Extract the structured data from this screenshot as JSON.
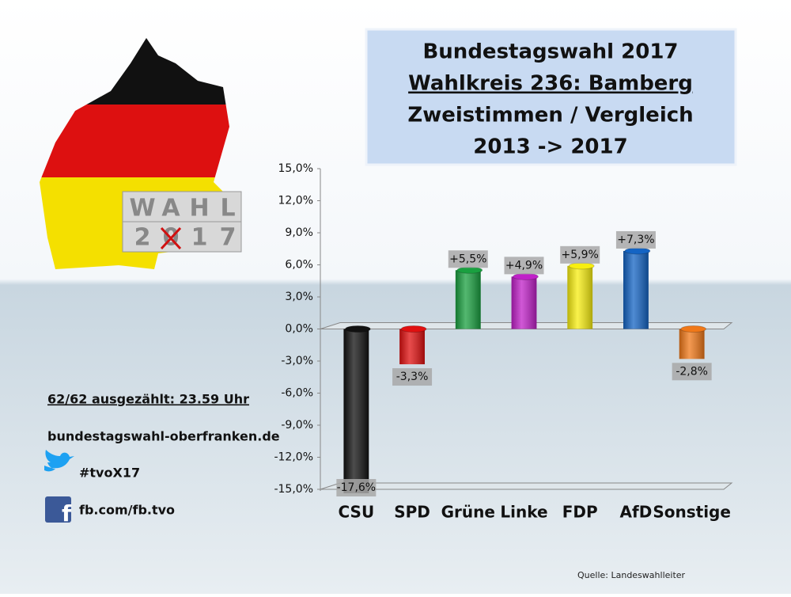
{
  "chart_data": {
    "type": "bar",
    "title": [
      "Bundestagswahl 2017",
      "Wahlkreis 236: Bamberg",
      "Zweistimmen / Vergleich",
      "2013 -> 2017"
    ],
    "categories": [
      "CSU",
      "SPD",
      "Grüne",
      "Linke",
      "FDP",
      "AfD",
      "Sonstige"
    ],
    "values": [
      -17.6,
      -3.3,
      5.5,
      4.9,
      5.9,
      7.3,
      -2.8
    ],
    "value_labels": [
      "-17,6%",
      "-3,3%",
      "+5,5%",
      "+4,9%",
      "+5,9%",
      "+7,3%",
      "-2,8%"
    ],
    "colors": [
      "#111111",
      "#e01010",
      "#1aa040",
      "#c020c8",
      "#f8ee10",
      "#1464c4",
      "#f07818"
    ],
    "ylim": [
      -15,
      15
    ],
    "yticks": [
      {
        "value": -15,
        "label": "-15,0%"
      },
      {
        "value": -12,
        "label": "-12,0%"
      },
      {
        "value": -9,
        "label": "-9,0%"
      },
      {
        "value": -6,
        "label": "-6,0%"
      },
      {
        "value": -3,
        "label": "-3,0%"
      },
      {
        "value": 0,
        "label": "0,0%"
      },
      {
        "value": 3,
        "label": "3,0%"
      },
      {
        "value": 6,
        "label": "6,0%"
      },
      {
        "value": 9,
        "label": "9,0%"
      },
      {
        "value": 12,
        "label": "12,0%"
      },
      {
        "value": 15,
        "label": "15,0%"
      }
    ],
    "grid": false
  },
  "logo": {
    "top": [
      "W",
      "A",
      "H",
      "L"
    ],
    "bottom": [
      "2",
      "0",
      "1",
      "7"
    ]
  },
  "info": {
    "status": "62/62 ausgezählt: 23.59 Uhr",
    "website": "bundestagswahl-oberfranken.de",
    "twitter": "#tvoX17",
    "facebook": "fb.com/fb.tvo"
  },
  "source": "Quelle: Landeswahlleiter"
}
